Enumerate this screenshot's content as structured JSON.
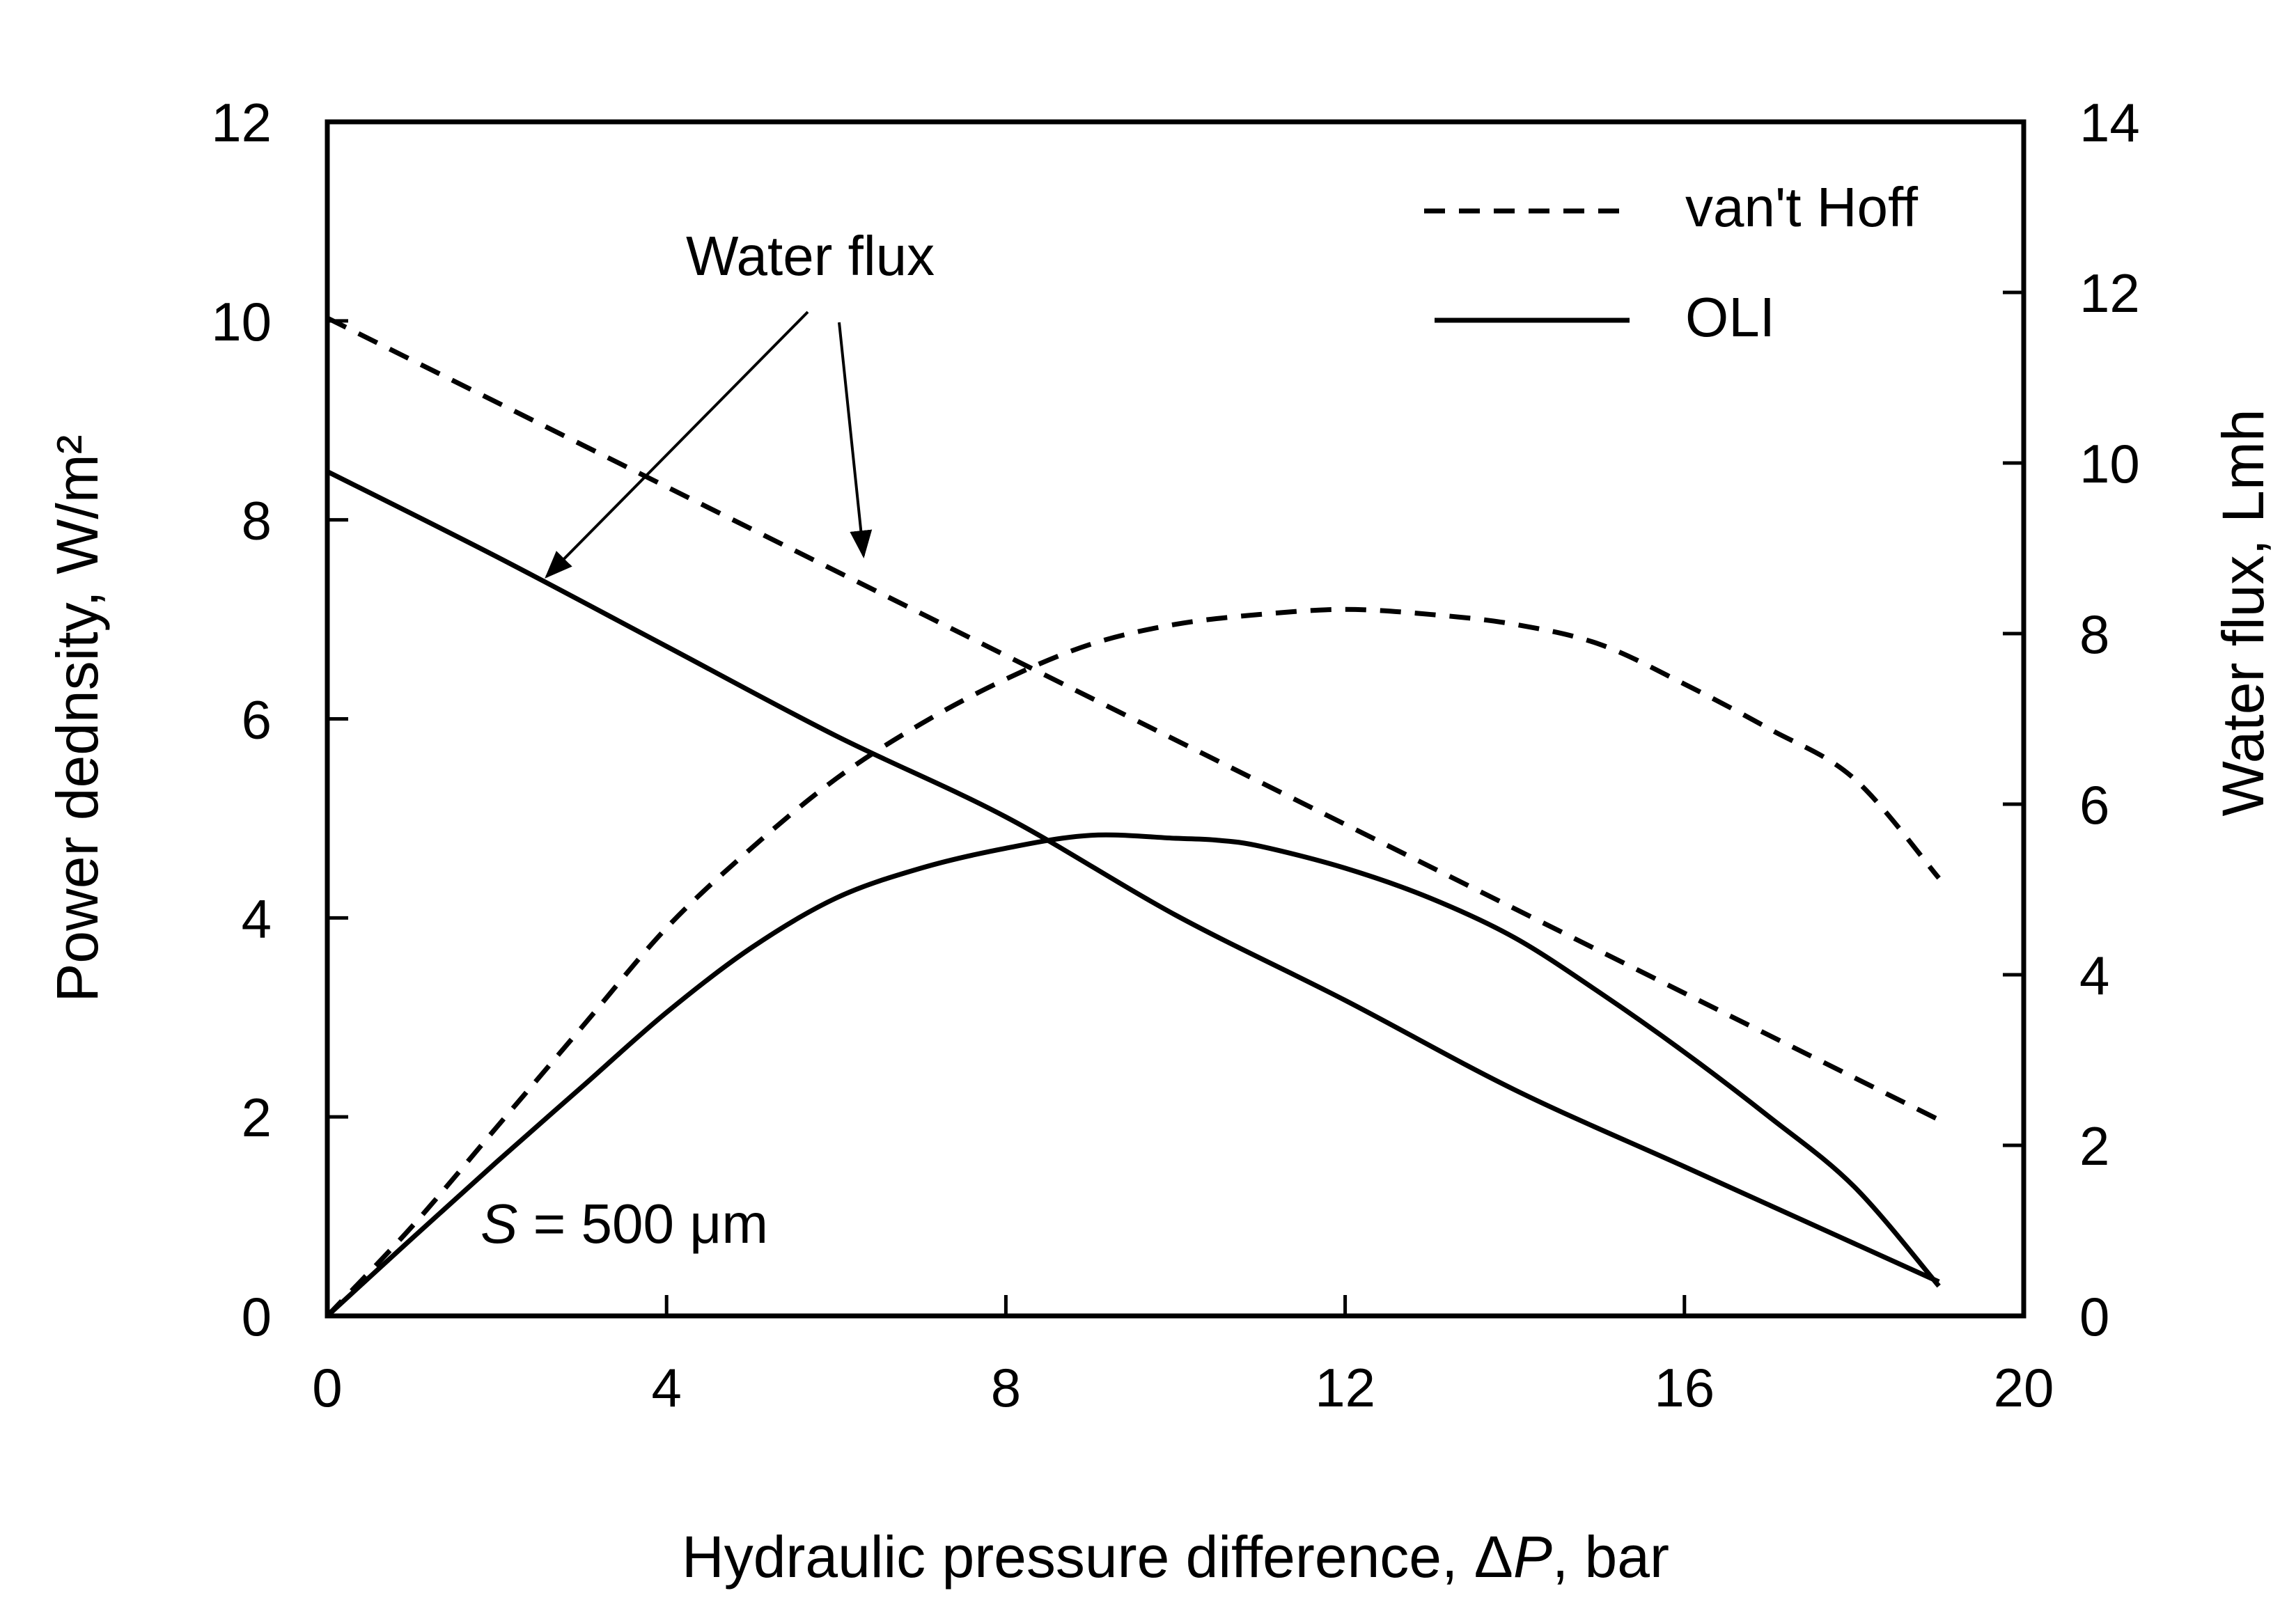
{
  "chart_data": {
    "type": "line",
    "title": "",
    "xlabel_prefix": "Hydraulic pressure difference, Δ",
    "xlabel_var": "P",
    "xlabel_suffix": ", bar",
    "ylabel_left": "Power dednsity, W/m²",
    "ylabel_right": "Water flux, Lmh",
    "xlim": [
      0,
      20
    ],
    "ylim_left": [
      0,
      12
    ],
    "ylim_right": [
      0,
      14
    ],
    "x_ticks": [
      "0",
      "4",
      "8",
      "12",
      "16",
      "20"
    ],
    "y_left_ticks": [
      "0",
      "2",
      "4",
      "6",
      "8",
      "10",
      "12"
    ],
    "y_right_ticks": [
      "0",
      "2",
      "4",
      "6",
      "8",
      "10",
      "12",
      "14"
    ],
    "legend": [
      {
        "label": "van't Hoff",
        "style": "dashed"
      },
      {
        "label": "OLI",
        "style": "solid"
      }
    ],
    "series": [
      {
        "name": "van't Hoff power density",
        "axis": "left",
        "style": "dashed",
        "x": [
          0,
          1,
          2,
          3,
          4,
          5,
          6,
          7,
          8,
          9,
          10,
          11,
          12,
          13,
          14,
          15,
          16,
          17,
          18,
          19
        ],
        "y": [
          0,
          0.9,
          1.9,
          2.9,
          3.9,
          4.7,
          5.4,
          5.95,
          6.4,
          6.75,
          6.95,
          7.05,
          7.1,
          7.05,
          6.95,
          6.75,
          6.35,
          5.9,
          5.4,
          4.4
        ]
      },
      {
        "name": "OLI power density",
        "axis": "left",
        "style": "solid",
        "x": [
          0,
          1,
          2,
          3,
          4,
          5,
          6,
          7,
          8,
          9,
          10,
          10.5,
          11,
          12,
          13,
          14,
          15,
          16,
          17,
          18,
          19
        ],
        "y": [
          0,
          0.78,
          1.55,
          2.3,
          3.05,
          3.7,
          4.2,
          4.5,
          4.7,
          4.83,
          4.8,
          4.78,
          4.72,
          4.5,
          4.2,
          3.8,
          3.25,
          2.65,
          2.0,
          1.3,
          0.3
        ]
      },
      {
        "name": "van't Hoff water flux",
        "axis": "right",
        "style": "dashed",
        "x": [
          0,
          19
        ],
        "y": [
          11.7,
          2.3
        ]
      },
      {
        "name": "OLI water flux",
        "axis": "right",
        "style": "solid",
        "x": [
          0,
          2,
          4,
          6,
          8,
          10,
          12,
          14,
          16,
          18,
          19
        ],
        "y": [
          9.9,
          8.9,
          7.85,
          6.8,
          5.85,
          4.7,
          3.7,
          2.65,
          1.75,
          0.85,
          0.4
        ]
      }
    ],
    "annotations": {
      "water_flux_label": "Water flux",
      "s_label_var": "S",
      "s_label_rest": " = 500 μm"
    }
  }
}
